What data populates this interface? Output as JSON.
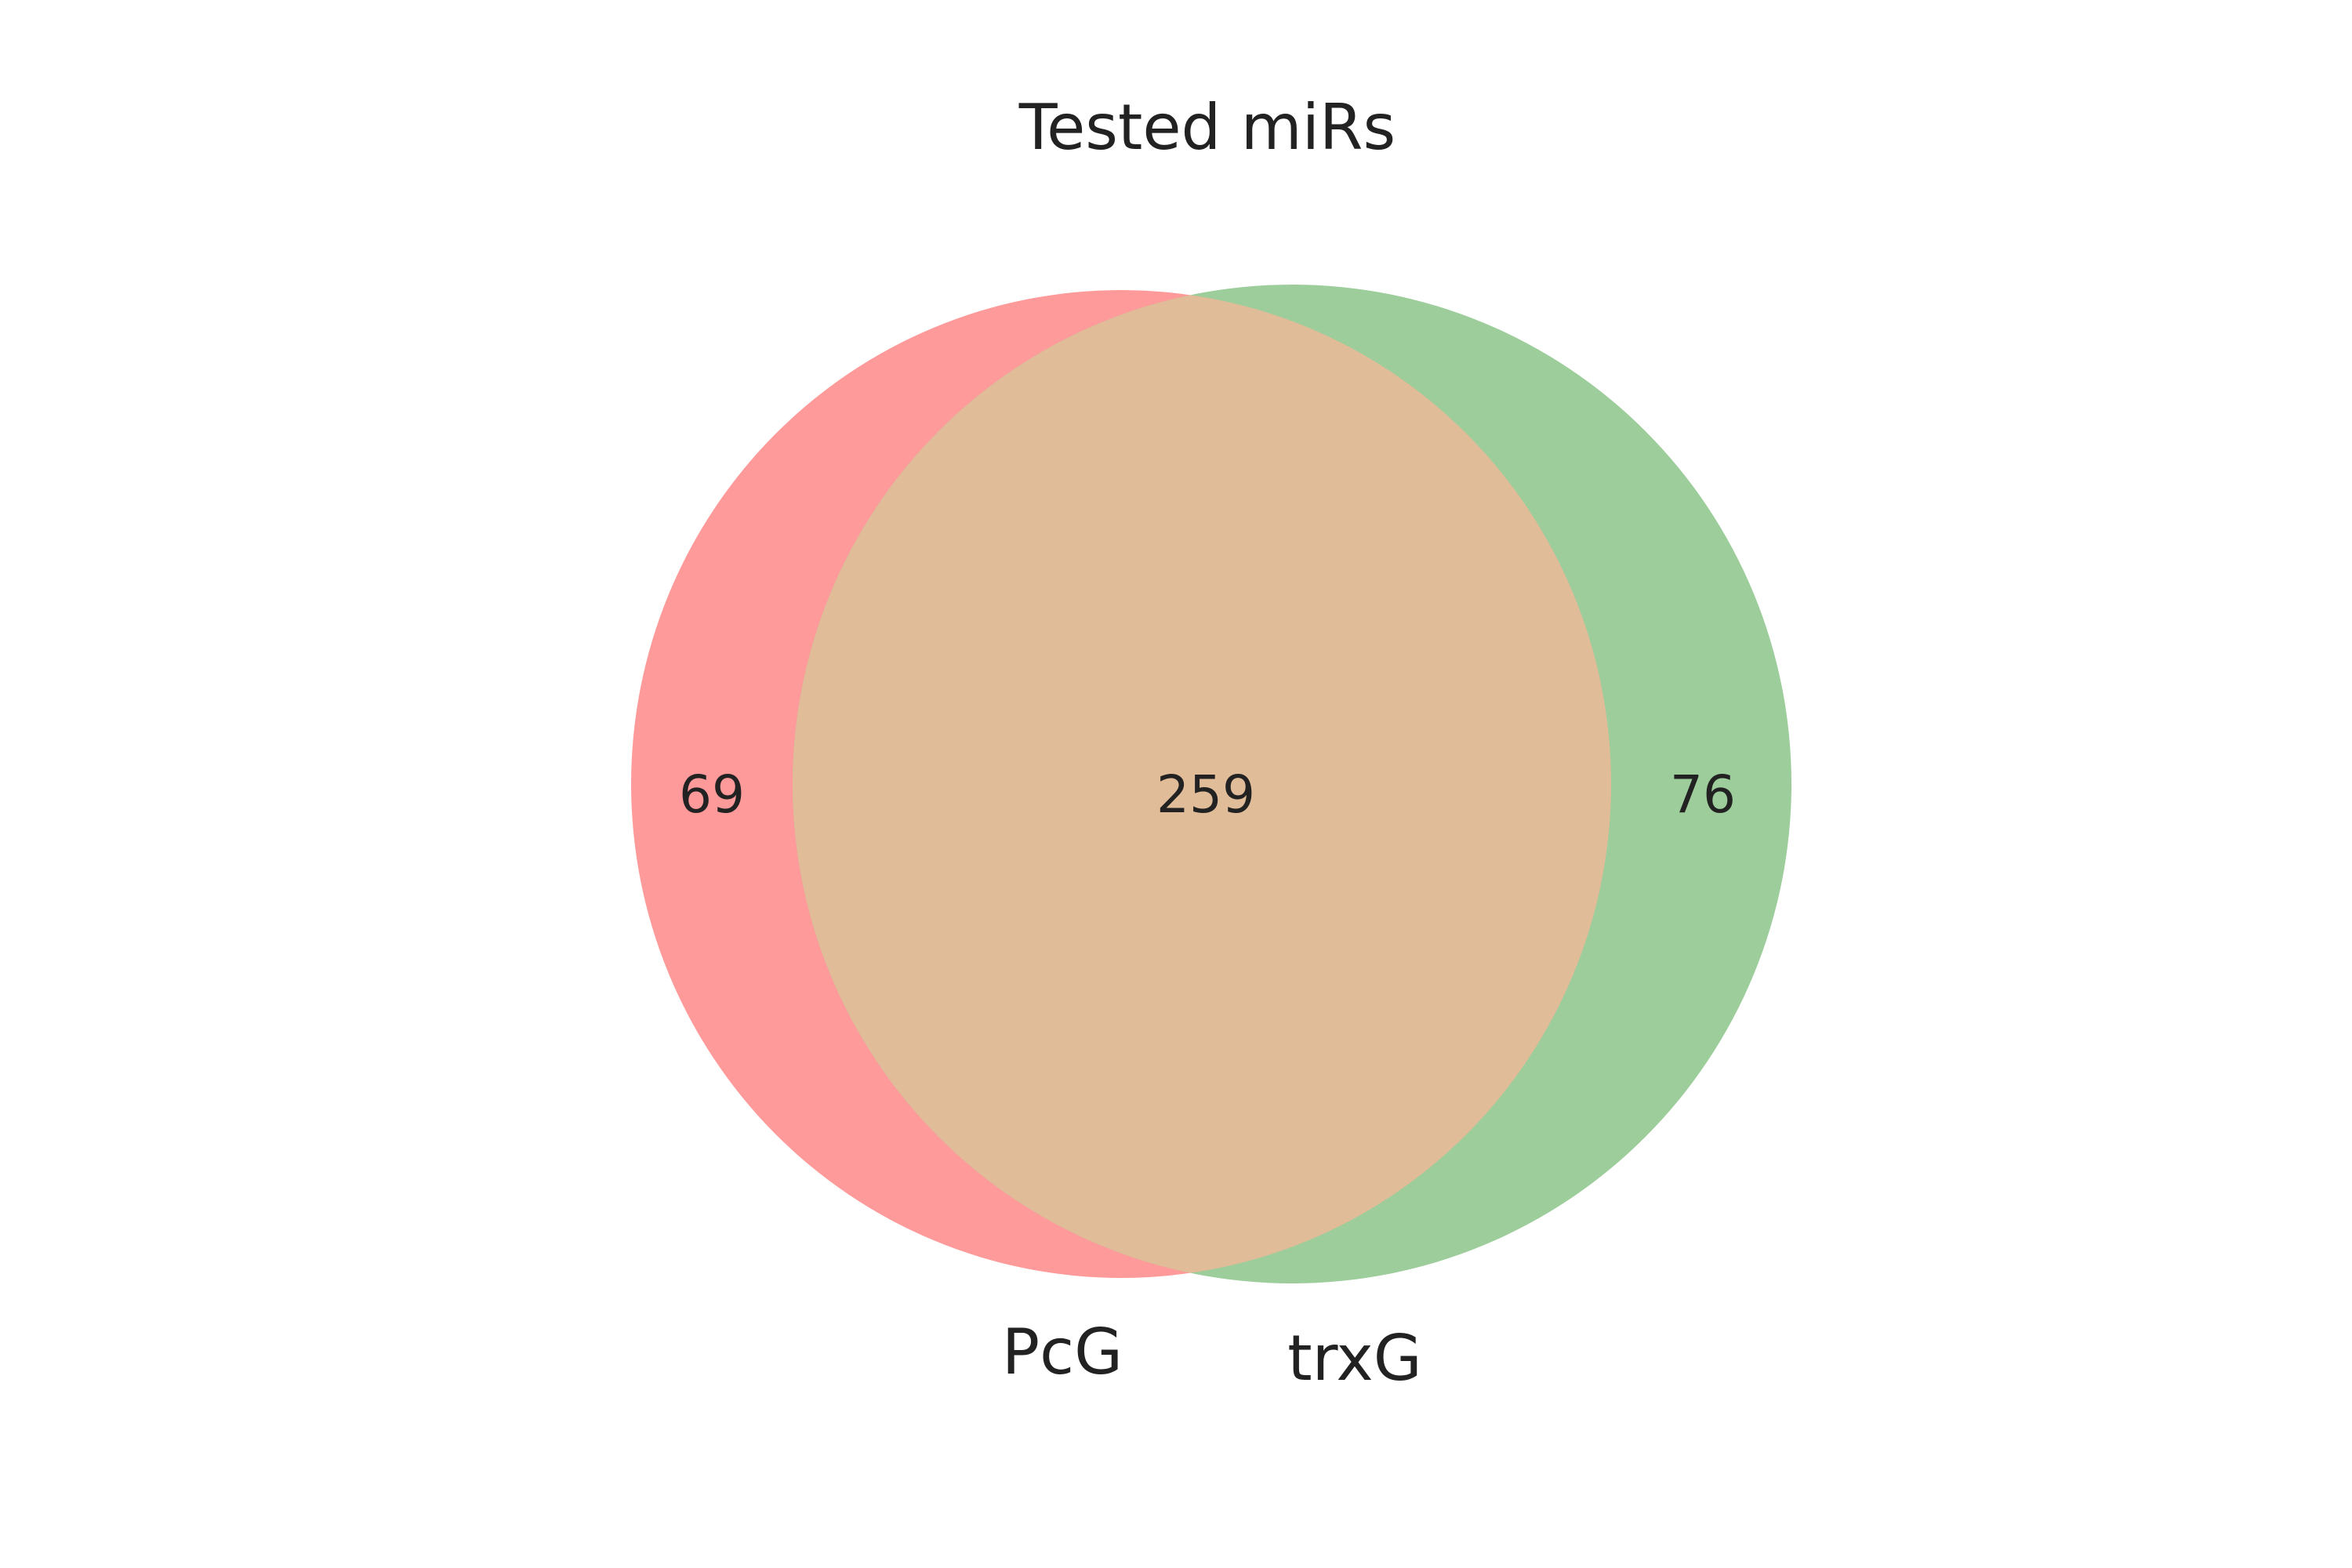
{
  "title": "Tested miRs",
  "colors": {
    "set_a": "#ff9a9a",
    "set_b": "#9ccd9b",
    "overlap": "#e0bc98",
    "text": "#222222",
    "background": "#ffffff"
  },
  "sets": [
    {
      "label": "PcG"
    },
    {
      "label": "trxG"
    }
  ],
  "regions": {
    "only_a": "69",
    "both": "259",
    "only_b": "76"
  }
}
